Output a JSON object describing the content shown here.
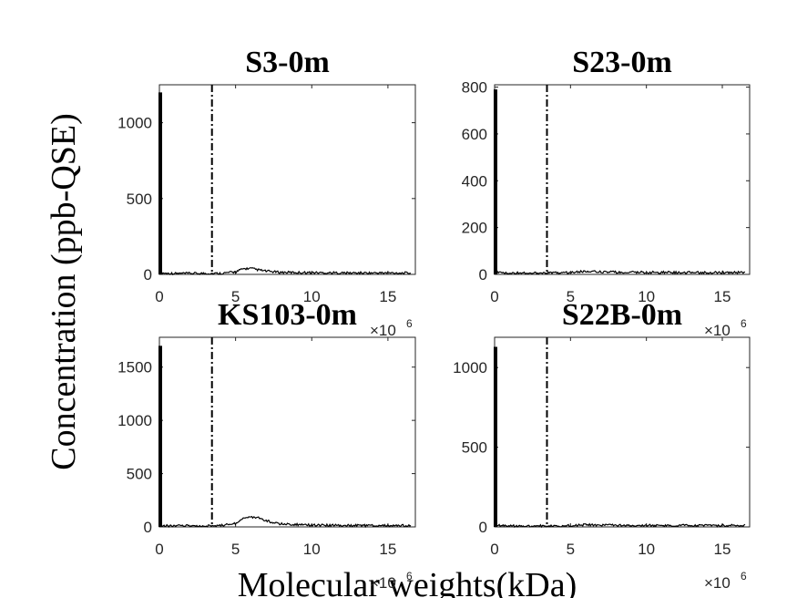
{
  "figure": {
    "ylabel": "Concentration (ppb-QSE)",
    "xlabel": "Molecular weights(kDa)"
  },
  "chart_data": [
    {
      "type": "line",
      "title": "S3-0m",
      "xlim": [
        0,
        16800000
      ],
      "ylim": [
        0,
        1250
      ],
      "xticks": [
        0,
        5,
        10,
        15
      ],
      "yticks": [
        0,
        500,
        1000
      ],
      "x_exponent": "×10",
      "x_exponent_power": "6",
      "spike": {
        "x": 0,
        "y": 1200
      },
      "cutoff_x": 3450000,
      "series": [
        {
          "x": [
            50000,
            500000,
            1000000,
            2000000,
            3000000,
            4000000,
            5000000,
            5500000,
            6000000,
            6500000,
            7000000,
            8000000,
            10000000,
            12000000,
            14000000,
            16500000
          ],
          "y": [
            10,
            5,
            5,
            5,
            5,
            5,
            15,
            35,
            38,
            28,
            20,
            12,
            10,
            8,
            8,
            8
          ]
        }
      ]
    },
    {
      "type": "line",
      "title": "S23-0m",
      "xlim": [
        0,
        16800000
      ],
      "ylim": [
        0,
        810
      ],
      "xticks": [
        0,
        5,
        10,
        15
      ],
      "yticks": [
        0,
        200,
        400,
        600,
        800
      ],
      "x_exponent": "×10",
      "x_exponent_power": "6",
      "spike": {
        "x": 0,
        "y": 790
      },
      "cutoff_x": 3450000,
      "series": [
        {
          "x": [
            50000,
            500000,
            1000000,
            2000000,
            3000000,
            4000000,
            5000000,
            6000000,
            7000000,
            8000000,
            10000000,
            12000000,
            14000000,
            16500000
          ],
          "y": [
            10,
            5,
            5,
            5,
            5,
            5,
            8,
            12,
            10,
            8,
            8,
            7,
            7,
            7
          ]
        }
      ]
    },
    {
      "type": "line",
      "title": "KS103-0m",
      "xlim": [
        0,
        16800000
      ],
      "ylim": [
        0,
        1780
      ],
      "xticks": [
        0,
        5,
        10,
        15
      ],
      "yticks": [
        0,
        500,
        1000,
        1500
      ],
      "x_exponent": "×10",
      "x_exponent_power": "6",
      "spike": {
        "x": 0,
        "y": 1700
      },
      "cutoff_x": 3450000,
      "series": [
        {
          "x": [
            50000,
            500000,
            1000000,
            2000000,
            3000000,
            4000000,
            5000000,
            5500000,
            6000000,
            6500000,
            7000000,
            8000000,
            10000000,
            12000000,
            14000000,
            16500000
          ],
          "y": [
            15,
            8,
            8,
            8,
            8,
            10,
            30,
            80,
            90,
            85,
            55,
            25,
            15,
            12,
            10,
            10
          ]
        }
      ]
    },
    {
      "type": "line",
      "title": "S22B-0m",
      "xlim": [
        0,
        16800000
      ],
      "ylim": [
        0,
        1190
      ],
      "xticks": [
        0,
        5,
        10,
        15
      ],
      "yticks": [
        0,
        500,
        1000
      ],
      "x_exponent": "×10",
      "x_exponent_power": "6",
      "spike": {
        "x": 0,
        "y": 1130
      },
      "cutoff_x": 3450000,
      "series": [
        {
          "x": [
            50000,
            500000,
            1000000,
            2000000,
            3000000,
            4000000,
            5000000,
            6000000,
            7000000,
            8000000,
            10000000,
            12000000,
            14000000,
            16500000
          ],
          "y": [
            10,
            5,
            5,
            5,
            5,
            5,
            8,
            12,
            10,
            8,
            8,
            7,
            7,
            7
          ]
        }
      ]
    }
  ]
}
